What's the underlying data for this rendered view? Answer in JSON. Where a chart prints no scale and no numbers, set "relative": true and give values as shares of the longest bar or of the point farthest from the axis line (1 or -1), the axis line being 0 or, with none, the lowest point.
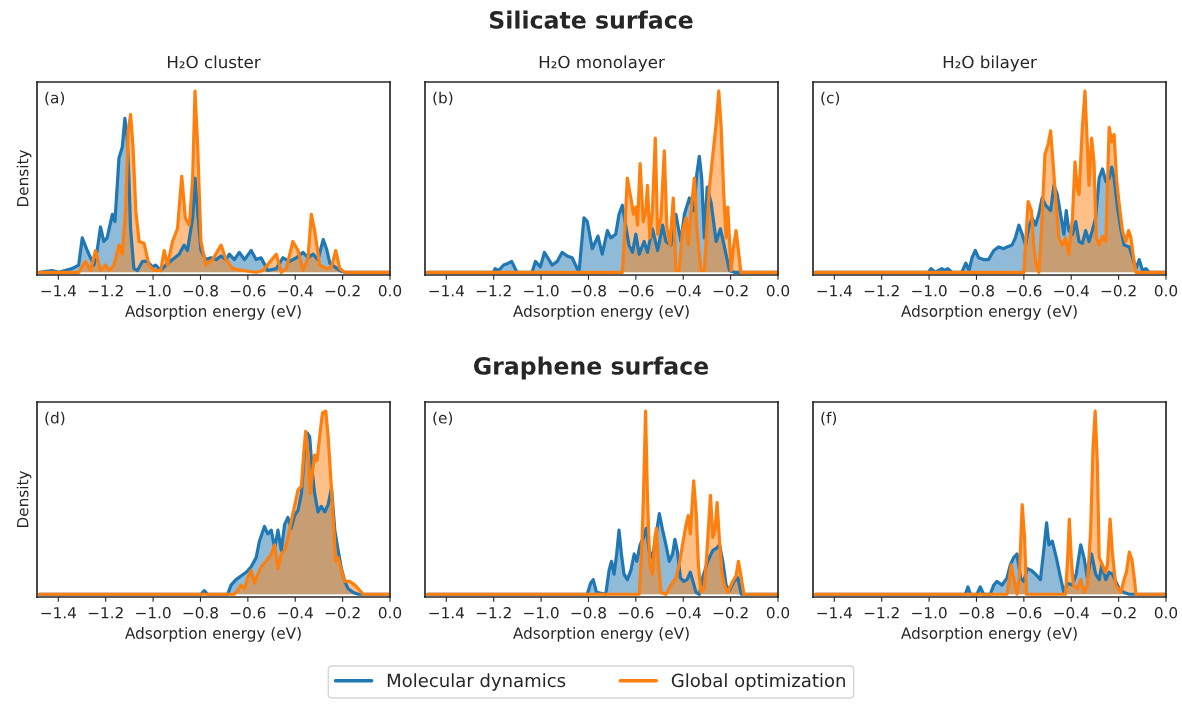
{
  "chart_data": [
    {
      "type": "area",
      "title": "H₂O cluster",
      "xlabel": "Adsorption energy (eV)",
      "ylabel": "Density",
      "annotations": [
        "(a)",
        "Silicate surface"
      ],
      "legend": "bottom",
      "relative": true,
      "tick_labels": "x",
      "xlim": [
        -1.49,
        0
      ],
      "xticks": [
        {
          "value": -1.4,
          "label": "−1.4"
        },
        {
          "value": -1.2,
          "label": "−1.2"
        },
        {
          "value": -1.0,
          "label": "−1.0"
        },
        {
          "value": -0.8,
          "label": "−0.8"
        },
        {
          "value": -0.6,
          "label": "−0.6"
        },
        {
          "value": -0.4,
          "label": "−0.4"
        },
        {
          "value": -0.2,
          "label": "−0.2"
        },
        {
          "value": 0,
          "label": "0.0"
        }
      ],
      "series": [
        {
          "name": "Molecular dynamics",
          "color": "#1f77b4",
          "x": [
            -1.48,
            -1.427,
            -1.398,
            -1.342,
            -1.314,
            -1.299,
            -1.278,
            -1.25,
            -1.236,
            -1.222,
            -1.208,
            -1.194,
            -1.172,
            -1.161,
            -1.144,
            -1.13,
            -1.119,
            -1.109,
            -1.102,
            -1.095,
            -1.081,
            -1.066,
            -1.045,
            -1.024,
            -1.003,
            -0.989,
            -0.968,
            -0.946,
            -0.918,
            -0.89,
            -0.869,
            -0.855,
            -0.833,
            -0.823,
            -0.812,
            -0.798,
            -0.777,
            -0.756,
            -0.734,
            -0.713,
            -0.692,
            -0.678,
            -0.657,
            -0.636,
            -0.614,
            -0.586,
            -0.565,
            -0.544,
            -0.516,
            -0.48,
            -0.452,
            -0.424,
            -0.395,
            -0.367,
            -0.346,
            -0.325,
            -0.304,
            -0.282,
            -0.268,
            -0.254,
            -0.233,
            -0.212,
            -0.191,
            0
          ],
          "values": [
            0,
            0.01,
            0,
            0.02,
            0.04,
            0.19,
            0.12,
            0.04,
            0.12,
            0.25,
            0.17,
            0.19,
            0.32,
            0.28,
            0.63,
            0.69,
            0.85,
            0.74,
            0.52,
            0.24,
            0.02,
            0.01,
            0.06,
            0.06,
            0.03,
            0.04,
            0.01,
            0.04,
            0.07,
            0.1,
            0.15,
            0.12,
            0.3,
            0.52,
            0.34,
            0.12,
            0.07,
            0.08,
            0.07,
            0.09,
            0.07,
            0.1,
            0.07,
            0.11,
            0.07,
            0.12,
            0.07,
            0.08,
            0.01,
            0.02,
            0.08,
            0.06,
            0.08,
            0.11,
            0.08,
            0.1,
            0.07,
            0.18,
            0.13,
            0.05,
            0.03,
            0.01,
            0,
            0
          ]
        },
        {
          "name": "Global optimization",
          "color": "#ff7f0e",
          "x": [
            -1.48,
            -1.314,
            -1.285,
            -1.264,
            -1.243,
            -1.222,
            -1.201,
            -1.186,
            -1.165,
            -1.144,
            -1.13,
            -1.116,
            -1.105,
            -1.095,
            -1.085,
            -1.073,
            -1.059,
            -1.038,
            -1.017,
            -0.996,
            -0.968,
            -0.953,
            -0.939,
            -0.918,
            -0.897,
            -0.879,
            -0.864,
            -0.847,
            -0.833,
            -0.823,
            -0.812,
            -0.798,
            -0.777,
            -0.749,
            -0.713,
            -0.692,
            -0.664,
            -0.621,
            -0.565,
            -0.537,
            -0.48,
            -0.459,
            -0.438,
            -0.41,
            -0.388,
            -0.367,
            -0.346,
            -0.332,
            -0.318,
            -0.297,
            -0.268,
            -0.247,
            -0.229,
            -0.212,
            -0.191,
            0
          ],
          "values": [
            0,
            0,
            0.06,
            0.01,
            0.12,
            0.01,
            0.04,
            0.01,
            0.04,
            0.15,
            0.1,
            0.34,
            0.78,
            0.87,
            0.7,
            0.34,
            0.17,
            0.16,
            0.04,
            0.01,
            0.01,
            0.12,
            0.04,
            0.17,
            0.24,
            0.53,
            0.3,
            0.26,
            0.52,
            1.0,
            0.7,
            0.17,
            0.04,
            0.07,
            0.15,
            0.07,
            0.02,
            0.01,
            0,
            0.01,
            0.1,
            0,
            0.02,
            0.17,
            0.12,
            0.01,
            0.08,
            0.32,
            0.23,
            0.04,
            0.02,
            0.03,
            0.12,
            0.02,
            0,
            0
          ]
        }
      ]
    },
    {
      "type": "area",
      "title": "H₂O monolayer",
      "xlabel": "Adsorption energy (eV)",
      "annotations": [
        "(b)"
      ],
      "relative": true,
      "tick_labels": "x",
      "xlim": [
        -1.49,
        0
      ],
      "xticks": [
        {
          "value": -1.4,
          "label": "−1.4"
        },
        {
          "value": -1.2,
          "label": "−1.2"
        },
        {
          "value": -1.0,
          "label": "−1.0"
        },
        {
          "value": -0.8,
          "label": "−0.8"
        },
        {
          "value": -0.6,
          "label": "−0.6"
        },
        {
          "value": -0.4,
          "label": "−0.4"
        },
        {
          "value": -0.2,
          "label": "−0.2"
        },
        {
          "value": 0,
          "label": "0.0"
        }
      ],
      "series": [
        {
          "color": "#1f77b4",
          "x": [
            -1.48,
            -1.201,
            -1.194,
            -1.179,
            -1.158,
            -1.138,
            -1.124,
            -1.102,
            -1.038,
            -1.024,
            -1.003,
            -0.986,
            -0.972,
            -0.953,
            -0.932,
            -0.911,
            -0.89,
            -0.869,
            -0.84,
            -0.819,
            -0.805,
            -0.784,
            -0.76,
            -0.742,
            -0.72,
            -0.706,
            -0.685,
            -0.671,
            -0.657,
            -0.643,
            -0.629,
            -0.614,
            -0.6,
            -0.586,
            -0.565,
            -0.551,
            -0.53,
            -0.508,
            -0.487,
            -0.473,
            -0.452,
            -0.431,
            -0.41,
            -0.395,
            -0.374,
            -0.356,
            -0.342,
            -0.332,
            -0.322,
            -0.311,
            -0.299,
            -0.282,
            -0.261,
            -0.243,
            -0.226,
            -0.205,
            -0.184,
            0
          ],
          "values": [
            0,
            0,
            0.02,
            0.01,
            0.04,
            0.05,
            0.06,
            0,
            0,
            0.06,
            0.03,
            0.11,
            0.08,
            0.04,
            0.06,
            0.11,
            0.09,
            0.08,
            0,
            0.3,
            0.28,
            0.13,
            0.2,
            0.1,
            0.23,
            0.19,
            0.21,
            0.32,
            0.37,
            0.26,
            0.15,
            0.11,
            0.21,
            0.1,
            0.17,
            0.11,
            0.24,
            0.12,
            0.26,
            0.17,
            0.15,
            0.32,
            0.17,
            0.32,
            0.41,
            0.34,
            0.55,
            0.64,
            0.52,
            0.19,
            0.47,
            0.38,
            0.17,
            0.24,
            0.14,
            0.01,
            0,
            0
          ]
        },
        {
          "color": "#ff7f0e",
          "x": [
            -1.48,
            -0.657,
            -0.65,
            -0.636,
            -0.621,
            -0.61,
            -0.6,
            -0.593,
            -0.582,
            -0.569,
            -0.558,
            -0.551,
            -0.541,
            -0.53,
            -0.518,
            -0.508,
            -0.494,
            -0.48,
            -0.469,
            -0.456,
            -0.442,
            -0.431,
            -0.417,
            -0.403,
            -0.388,
            -0.379,
            -0.367,
            -0.353,
            -0.342,
            -0.325,
            -0.311,
            -0.29,
            -0.275,
            -0.261,
            -0.25,
            -0.24,
            -0.229,
            -0.219,
            -0.212,
            -0.198,
            -0.188,
            -0.177,
            -0.167,
            -0.157,
            0
          ],
          "values": [
            0,
            0,
            0.15,
            0.52,
            0.41,
            0.32,
            0.36,
            0.26,
            0.6,
            0.28,
            0.34,
            0.48,
            0.19,
            0.34,
            0.74,
            0.21,
            0.3,
            0.67,
            0.25,
            0.15,
            0.41,
            0.01,
            0.01,
            0.23,
            0.3,
            0.15,
            0.34,
            0.52,
            0.23,
            0.01,
            0.01,
            0.46,
            0.65,
            0.82,
            1.0,
            0.8,
            0.43,
            0.19,
            0.36,
            0.01,
            0.14,
            0.23,
            0.12,
            0,
            0
          ]
        }
      ]
    },
    {
      "type": "area",
      "title": "H₂O bilayer",
      "xlabel": "Adsorption energy (eV)",
      "annotations": [
        "(c)"
      ],
      "relative": true,
      "tick_labels": "x",
      "xlim": [
        -1.49,
        0
      ],
      "xticks": [
        {
          "value": -1.4,
          "label": "−1.4"
        },
        {
          "value": -1.2,
          "label": "−1.2"
        },
        {
          "value": -1.0,
          "label": "−1.0"
        },
        {
          "value": -0.8,
          "label": "−0.8"
        },
        {
          "value": -0.6,
          "label": "−0.6"
        },
        {
          "value": -0.4,
          "label": "−0.4"
        },
        {
          "value": -0.2,
          "label": "−0.2"
        },
        {
          "value": 0,
          "label": "0.0"
        }
      ],
      "series": [
        {
          "color": "#1f77b4",
          "x": [
            -1.48,
            -1.003,
            -0.992,
            -0.975,
            -0.946,
            -0.935,
            -0.921,
            -0.904,
            -0.862,
            -0.845,
            -0.831,
            -0.819,
            -0.805,
            -0.791,
            -0.77,
            -0.749,
            -0.727,
            -0.706,
            -0.685,
            -0.671,
            -0.65,
            -0.636,
            -0.621,
            -0.607,
            -0.593,
            -0.579,
            -0.565,
            -0.551,
            -0.537,
            -0.523,
            -0.508,
            -0.487,
            -0.473,
            -0.459,
            -0.445,
            -0.431,
            -0.421,
            -0.41,
            -0.395,
            -0.381,
            -0.367,
            -0.353,
            -0.339,
            -0.325,
            -0.311,
            -0.297,
            -0.282,
            -0.268,
            -0.254,
            -0.24,
            -0.229,
            -0.219,
            -0.205,
            -0.191,
            -0.177,
            -0.155,
            -0.141,
            -0.127,
            -0.113,
            -0.099,
            -0.085,
            -0.071,
            0
          ],
          "values": [
            0,
            0,
            0.02,
            0,
            0.02,
            0.01,
            0.02,
            0,
            0,
            0.05,
            0.01,
            0.08,
            0.12,
            0.08,
            0.07,
            0.07,
            0.12,
            0.14,
            0.13,
            0.14,
            0.15,
            0.19,
            0.26,
            0.21,
            0.15,
            0.25,
            0.3,
            0.26,
            0.32,
            0.41,
            0.37,
            0.34,
            0.48,
            0.43,
            0.32,
            0.21,
            0.34,
            0.23,
            0.21,
            0.28,
            0.17,
            0.16,
            0.23,
            0.17,
            0.23,
            0.3,
            0.52,
            0.57,
            0.5,
            0.52,
            0.58,
            0.52,
            0.36,
            0.24,
            0.15,
            0.14,
            0.08,
            0.02,
            0.07,
            0.01,
            0.02,
            0,
            0
          ]
        },
        {
          "color": "#ff7f0e",
          "x": [
            -1.48,
            -0.6,
            -0.582,
            -0.568,
            -0.558,
            -0.548,
            -0.537,
            -0.525,
            -0.511,
            -0.497,
            -0.487,
            -0.477,
            -0.466,
            -0.452,
            -0.438,
            -0.424,
            -0.41,
            -0.395,
            -0.384,
            -0.374,
            -0.367,
            -0.353,
            -0.342,
            -0.332,
            -0.325,
            -0.314,
            -0.304,
            -0.294,
            -0.282,
            -0.268,
            -0.254,
            -0.24,
            -0.229,
            -0.219,
            -0.209,
            -0.198,
            -0.184,
            -0.17,
            -0.158,
            -0.148,
            -0.137,
            -0.127,
            0
          ],
          "values": [
            0,
            0,
            0.39,
            0.34,
            0.15,
            0.04,
            0,
            0.25,
            0.65,
            0.71,
            0.78,
            0.61,
            0.41,
            0.19,
            0.15,
            0.19,
            0.1,
            0.3,
            0.61,
            0.46,
            0.43,
            0.8,
            1.0,
            0.7,
            0.48,
            0.74,
            0.61,
            0.19,
            0.15,
            0.2,
            0.17,
            0.8,
            0.72,
            0.76,
            0.52,
            0.38,
            0.23,
            0.17,
            0.23,
            0.19,
            0.08,
            0,
            0
          ]
        }
      ]
    },
    {
      "type": "area",
      "xlabel": "Adsorption energy (eV)",
      "ylabel": "Density",
      "annotations": [
        "(d)",
        "Graphene surface"
      ],
      "relative": true,
      "tick_labels": "x",
      "xlim": [
        -1.49,
        0
      ],
      "xticks": [
        {
          "value": -1.4,
          "label": "−1.4"
        },
        {
          "value": -1.2,
          "label": "−1.2"
        },
        {
          "value": -1.0,
          "label": "−1.0"
        },
        {
          "value": -0.8,
          "label": "−0.8"
        },
        {
          "value": -0.6,
          "label": "−0.6"
        },
        {
          "value": -0.4,
          "label": "−0.4"
        },
        {
          "value": -0.2,
          "label": "−0.2"
        },
        {
          "value": 0,
          "label": "0.0"
        }
      ],
      "series": [
        {
          "color": "#1f77b4",
          "x": [
            -1.48,
            -0.798,
            -0.784,
            -0.77,
            -0.685,
            -0.671,
            -0.65,
            -0.629,
            -0.607,
            -0.586,
            -0.565,
            -0.551,
            -0.53,
            -0.516,
            -0.501,
            -0.487,
            -0.473,
            -0.459,
            -0.445,
            -0.431,
            -0.417,
            -0.403,
            -0.388,
            -0.374,
            -0.36,
            -0.349,
            -0.339,
            -0.328,
            -0.318,
            -0.304,
            -0.29,
            -0.275,
            -0.261,
            -0.247,
            -0.233,
            -0.219,
            -0.205,
            -0.191,
            -0.177,
            -0.155,
            -0.134,
            0
          ],
          "values": [
            0,
            0,
            0.02,
            0,
            0,
            0.05,
            0.08,
            0.1,
            0.12,
            0.15,
            0.2,
            0.29,
            0.37,
            0.33,
            0.35,
            0.25,
            0.35,
            0.24,
            0.38,
            0.42,
            0.36,
            0.43,
            0.46,
            0.55,
            0.79,
            0.88,
            0.86,
            0.67,
            0.55,
            0.45,
            0.48,
            0.45,
            0.49,
            0.58,
            0.35,
            0.24,
            0.14,
            0.07,
            0.03,
            0.01,
            0,
            0
          ]
        },
        {
          "color": "#ff7f0e",
          "x": [
            -1.48,
            -0.657,
            -0.643,
            -0.629,
            -0.614,
            -0.6,
            -0.586,
            -0.572,
            -0.558,
            -0.544,
            -0.523,
            -0.501,
            -0.487,
            -0.473,
            -0.459,
            -0.445,
            -0.431,
            -0.41,
            -0.388,
            -0.374,
            -0.364,
            -0.356,
            -0.346,
            -0.336,
            -0.328,
            -0.318,
            -0.308,
            -0.297,
            -0.285,
            -0.271,
            -0.261,
            -0.247,
            -0.237,
            -0.229,
            -0.219,
            -0.205,
            -0.191,
            -0.169,
            -0.148,
            -0.134,
            -0.113,
            0
          ],
          "values": [
            0,
            0,
            0.02,
            0.05,
            0.03,
            0.09,
            0.13,
            0.06,
            0.11,
            0.15,
            0.18,
            0.22,
            0.27,
            0.14,
            0.22,
            0.24,
            0.31,
            0.44,
            0.57,
            0.59,
            0.77,
            0.89,
            0.77,
            0.55,
            0.66,
            0.76,
            0.73,
            0.86,
            0.99,
            1.0,
            0.86,
            0.57,
            0.35,
            0.18,
            0.2,
            0.13,
            0.07,
            0.07,
            0.05,
            0.03,
            0,
            0
          ]
        }
      ]
    },
    {
      "type": "area",
      "xlabel": "Adsorption energy (eV)",
      "annotations": [
        "(e)"
      ],
      "relative": true,
      "tick_labels": "x",
      "xlim": [
        -1.49,
        0
      ],
      "xticks": [
        {
          "value": -1.4,
          "label": "−1.4"
        },
        {
          "value": -1.2,
          "label": "−1.2"
        },
        {
          "value": -1.0,
          "label": "−1.0"
        },
        {
          "value": -0.8,
          "label": "−0.8"
        },
        {
          "value": -0.6,
          "label": "−0.6"
        },
        {
          "value": -0.4,
          "label": "−0.4"
        },
        {
          "value": -0.2,
          "label": "−0.2"
        },
        {
          "value": 0,
          "label": "0.0"
        }
      ],
      "series": [
        {
          "color": "#1f77b4",
          "x": [
            -1.48,
            -0.805,
            -0.791,
            -0.78,
            -0.766,
            -0.727,
            -0.713,
            -0.703,
            -0.692,
            -0.681,
            -0.671,
            -0.661,
            -0.65,
            -0.636,
            -0.621,
            -0.607,
            -0.596,
            -0.582,
            -0.568,
            -0.556,
            -0.544,
            -0.53,
            -0.516,
            -0.501,
            -0.487,
            -0.473,
            -0.459,
            -0.445,
            -0.435,
            -0.424,
            -0.412,
            -0.398,
            -0.384,
            -0.37,
            -0.359,
            -0.346,
            -0.332,
            -0.318,
            -0.297,
            -0.275,
            -0.261,
            -0.247,
            -0.233,
            -0.219,
            -0.205,
            -0.186,
            -0.169,
            -0.155,
            0
          ],
          "values": [
            0,
            0,
            0.06,
            0.08,
            0.01,
            0,
            0.13,
            0.18,
            0.11,
            0.22,
            0.35,
            0.22,
            0.11,
            0.08,
            0.13,
            0.22,
            0.18,
            0.27,
            0.31,
            0.36,
            0.24,
            0.2,
            0.31,
            0.44,
            0.35,
            0.27,
            0.18,
            0.22,
            0.3,
            0.23,
            0.09,
            0.07,
            0.08,
            0.12,
            0.07,
            0.01,
            0,
            0.09,
            0.18,
            0.24,
            0.25,
            0.27,
            0.18,
            0.05,
            0.02,
            0.07,
            0.09,
            0,
            0
          ]
        },
        {
          "color": "#ff7f0e",
          "x": [
            -1.48,
            -0.586,
            -0.576,
            -0.568,
            -0.559,
            -0.551,
            -0.541,
            -0.53,
            -0.52,
            -0.513,
            -0.506,
            -0.494,
            -0.473,
            -0.452,
            -0.431,
            -0.417,
            -0.403,
            -0.388,
            -0.379,
            -0.37,
            -0.356,
            -0.345,
            -0.336,
            -0.325,
            -0.311,
            -0.299,
            -0.285,
            -0.275,
            -0.266,
            -0.257,
            -0.247,
            -0.237,
            -0.226,
            -0.212,
            -0.191,
            -0.177,
            -0.167,
            -0.155,
            -0.144,
            0
          ],
          "values": [
            0,
            0,
            0.22,
            0.53,
            1.0,
            0.53,
            0.16,
            0.11,
            0.31,
            0.36,
            0.2,
            0.01,
            0,
            0.05,
            0.09,
            0.16,
            0.27,
            0.38,
            0.43,
            0.33,
            0.62,
            0.44,
            0.16,
            0.01,
            0.03,
            0.25,
            0.54,
            0.31,
            0.35,
            0.5,
            0.29,
            0.12,
            0.05,
            0.01,
            0.07,
            0.1,
            0.18,
            0.09,
            0,
            0
          ]
        }
      ]
    },
    {
      "type": "area",
      "xlabel": "Adsorption energy (eV)",
      "annotations": [
        "(f)"
      ],
      "relative": true,
      "tick_labels": "x",
      "xlim": [
        -1.49,
        0
      ],
      "xticks": [
        {
          "value": -1.4,
          "label": "−1.4"
        },
        {
          "value": -1.2,
          "label": "−1.2"
        },
        {
          "value": -1.0,
          "label": "−1.0"
        },
        {
          "value": -0.8,
          "label": "−0.8"
        },
        {
          "value": -0.6,
          "label": "−0.6"
        },
        {
          "value": -0.4,
          "label": "−0.4"
        },
        {
          "value": -0.2,
          "label": "−0.2"
        },
        {
          "value": 0,
          "label": "0.0"
        }
      ],
      "series": [
        {
          "color": "#1f77b4",
          "x": [
            -1.48,
            -0.847,
            -0.836,
            -0.825,
            -0.798,
            -0.784,
            -0.77,
            -0.742,
            -0.727,
            -0.713,
            -0.692,
            -0.671,
            -0.657,
            -0.643,
            -0.629,
            -0.614,
            -0.6,
            -0.586,
            -0.568,
            -0.551,
            -0.53,
            -0.516,
            -0.504,
            -0.494,
            -0.48,
            -0.463,
            -0.445,
            -0.431,
            -0.417,
            -0.395,
            -0.379,
            -0.36,
            -0.346,
            -0.332,
            -0.314,
            -0.297,
            -0.282,
            -0.271,
            -0.254,
            -0.24,
            -0.226,
            -0.212,
            -0.198,
            -0.177,
            -0.155,
            0
          ],
          "values": [
            0,
            0,
            0.04,
            0,
            0,
            0.04,
            0,
            0,
            0.05,
            0.07,
            0.05,
            0.09,
            0.16,
            0.2,
            0.22,
            0.09,
            0.07,
            0.14,
            0.13,
            0.11,
            0.08,
            0.24,
            0.39,
            0.27,
            0.29,
            0.2,
            0.09,
            0.01,
            0.06,
            0.05,
            0.11,
            0.27,
            0.2,
            0.09,
            0.22,
            0.11,
            0.08,
            0.16,
            0.08,
            0.12,
            0.11,
            0.07,
            0.03,
            0.01,
            0,
            0
          ]
        },
        {
          "color": "#ff7f0e",
          "x": [
            -1.48,
            -0.671,
            -0.661,
            -0.653,
            -0.643,
            -0.629,
            -0.619,
            -0.607,
            -0.597,
            -0.589,
            -0.424,
            -0.415,
            -0.408,
            -0.4,
            -0.391,
            -0.374,
            -0.36,
            -0.346,
            -0.332,
            -0.318,
            -0.308,
            -0.299,
            -0.29,
            -0.282,
            -0.268,
            -0.257,
            -0.247,
            -0.236,
            -0.226,
            -0.212,
            -0.191,
            -0.177,
            -0.167,
            -0.155,
            -0.144,
            -0.134,
            -0.127,
            0
          ],
          "values": [
            0,
            0,
            0.09,
            0.16,
            0.09,
            0,
            0.09,
            0.49,
            0.31,
            0,
            0,
            0.2,
            0.41,
            0.2,
            0.05,
            0.03,
            0.08,
            0.01,
            0.05,
            0.35,
            0.8,
            1.0,
            0.72,
            0.2,
            0.16,
            0.12,
            0.16,
            0.41,
            0.22,
            0.05,
            0.01,
            0.08,
            0.12,
            0.23,
            0.19,
            0.09,
            0,
            0
          ]
        }
      ]
    }
  ]
}
